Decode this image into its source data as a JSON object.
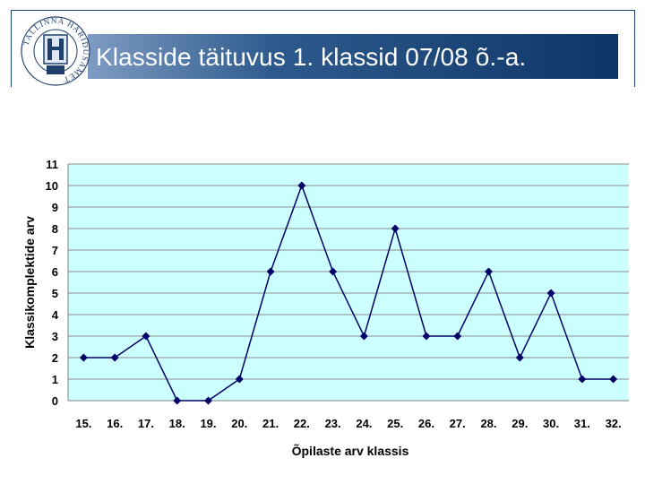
{
  "header": {
    "title": "Klasside täituvus 1. klassid 07/08 õ.-a.",
    "logo_text": "TALLINNA HARIDUSAMET",
    "logo_icon": "tallinn-education-board-seal",
    "colors": {
      "title_bar": "#0f3566",
      "title_text": "#ffffff"
    }
  },
  "chart_data": {
    "type": "line",
    "categories": [
      "15.",
      "16.",
      "17.",
      "18.",
      "19.",
      "20.",
      "21.",
      "22.",
      "23.",
      "24.",
      "25.",
      "26.",
      "27.",
      "28.",
      "29.",
      "30.",
      "31.",
      "32."
    ],
    "series": [
      {
        "values": [
          2,
          2,
          3,
          0,
          0,
          1,
          6,
          10,
          6,
          3,
          8,
          3,
          3,
          6,
          2,
          5,
          1,
          1
        ]
      }
    ],
    "xlabel": "Õpilaste arv klassis",
    "ylabel": "Klassikomplektide arv",
    "ylim": [
      0,
      11
    ],
    "yticks": [
      0,
      1,
      2,
      3,
      4,
      5,
      6,
      7,
      8,
      9,
      10,
      11
    ],
    "grid": true,
    "colors": {
      "plot_bg": "#ccffff",
      "line": "#000066",
      "marker": "#000066",
      "grid": "#8c8c8c"
    }
  }
}
